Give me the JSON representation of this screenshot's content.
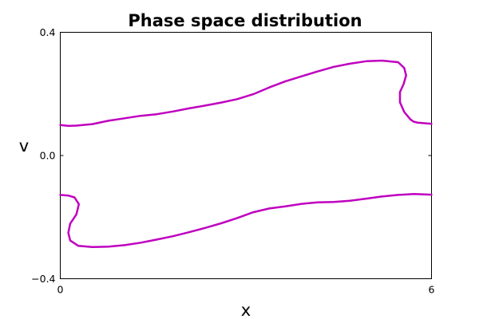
{
  "chart_data": {
    "type": "line",
    "title": "Phase space distribution",
    "xlabel": "x",
    "ylabel": "v",
    "xlim": [
      0,
      6
    ],
    "ylim": [
      -0.4,
      0.4
    ],
    "x_ticks": [
      0,
      6
    ],
    "x_tick_labels": [
      "0",
      "6"
    ],
    "y_ticks": [
      0.4,
      0.0,
      -0.4
    ],
    "y_tick_labels": [
      "0.4",
      "0.0",
      "−0.4"
    ],
    "grid": false,
    "series_color": "#bf00bf",
    "series": [
      {
        "points": [
          [
            0.0,
            0.099
          ],
          [
            0.13,
            0.096
          ],
          [
            0.26,
            0.097
          ],
          [
            0.52,
            0.102
          ],
          [
            0.78,
            0.113
          ],
          [
            1.04,
            0.121
          ],
          [
            1.3,
            0.129
          ],
          [
            1.56,
            0.134
          ],
          [
            1.82,
            0.143
          ],
          [
            2.08,
            0.153
          ],
          [
            2.34,
            0.162
          ],
          [
            2.6,
            0.172
          ],
          [
            2.86,
            0.183
          ],
          [
            3.12,
            0.199
          ],
          [
            3.38,
            0.221
          ],
          [
            3.64,
            0.241
          ],
          [
            3.9,
            0.257
          ],
          [
            4.16,
            0.273
          ],
          [
            4.42,
            0.288
          ],
          [
            4.68,
            0.298
          ],
          [
            4.94,
            0.306
          ],
          [
            5.2,
            0.308
          ],
          [
            5.46,
            0.303
          ],
          [
            5.56,
            0.284
          ],
          [
            5.59,
            0.26
          ],
          [
            5.55,
            0.232
          ],
          [
            5.49,
            0.206
          ],
          [
            5.49,
            0.173
          ],
          [
            5.56,
            0.141
          ],
          [
            5.66,
            0.117
          ],
          [
            5.71,
            0.11
          ],
          [
            5.77,
            0.107
          ],
          [
            6.0,
            0.103
          ]
        ]
      },
      {
        "points": [
          [
            0.0,
            -0.128
          ],
          [
            0.13,
            -0.13
          ],
          [
            0.23,
            -0.136
          ],
          [
            0.3,
            -0.158
          ],
          [
            0.26,
            -0.191
          ],
          [
            0.16,
            -0.221
          ],
          [
            0.13,
            -0.251
          ],
          [
            0.16,
            -0.276
          ],
          [
            0.29,
            -0.293
          ],
          [
            0.52,
            -0.297
          ],
          [
            0.78,
            -0.296
          ],
          [
            1.04,
            -0.291
          ],
          [
            1.3,
            -0.283
          ],
          [
            1.56,
            -0.273
          ],
          [
            1.82,
            -0.262
          ],
          [
            2.08,
            -0.249
          ],
          [
            2.34,
            -0.235
          ],
          [
            2.6,
            -0.22
          ],
          [
            2.86,
            -0.203
          ],
          [
            3.12,
            -0.184
          ],
          [
            3.38,
            -0.172
          ],
          [
            3.64,
            -0.165
          ],
          [
            3.9,
            -0.157
          ],
          [
            4.16,
            -0.152
          ],
          [
            4.42,
            -0.151
          ],
          [
            4.68,
            -0.147
          ],
          [
            4.94,
            -0.14
          ],
          [
            5.2,
            -0.133
          ],
          [
            5.46,
            -0.128
          ],
          [
            5.72,
            -0.125
          ],
          [
            6.0,
            -0.127
          ]
        ]
      }
    ]
  }
}
